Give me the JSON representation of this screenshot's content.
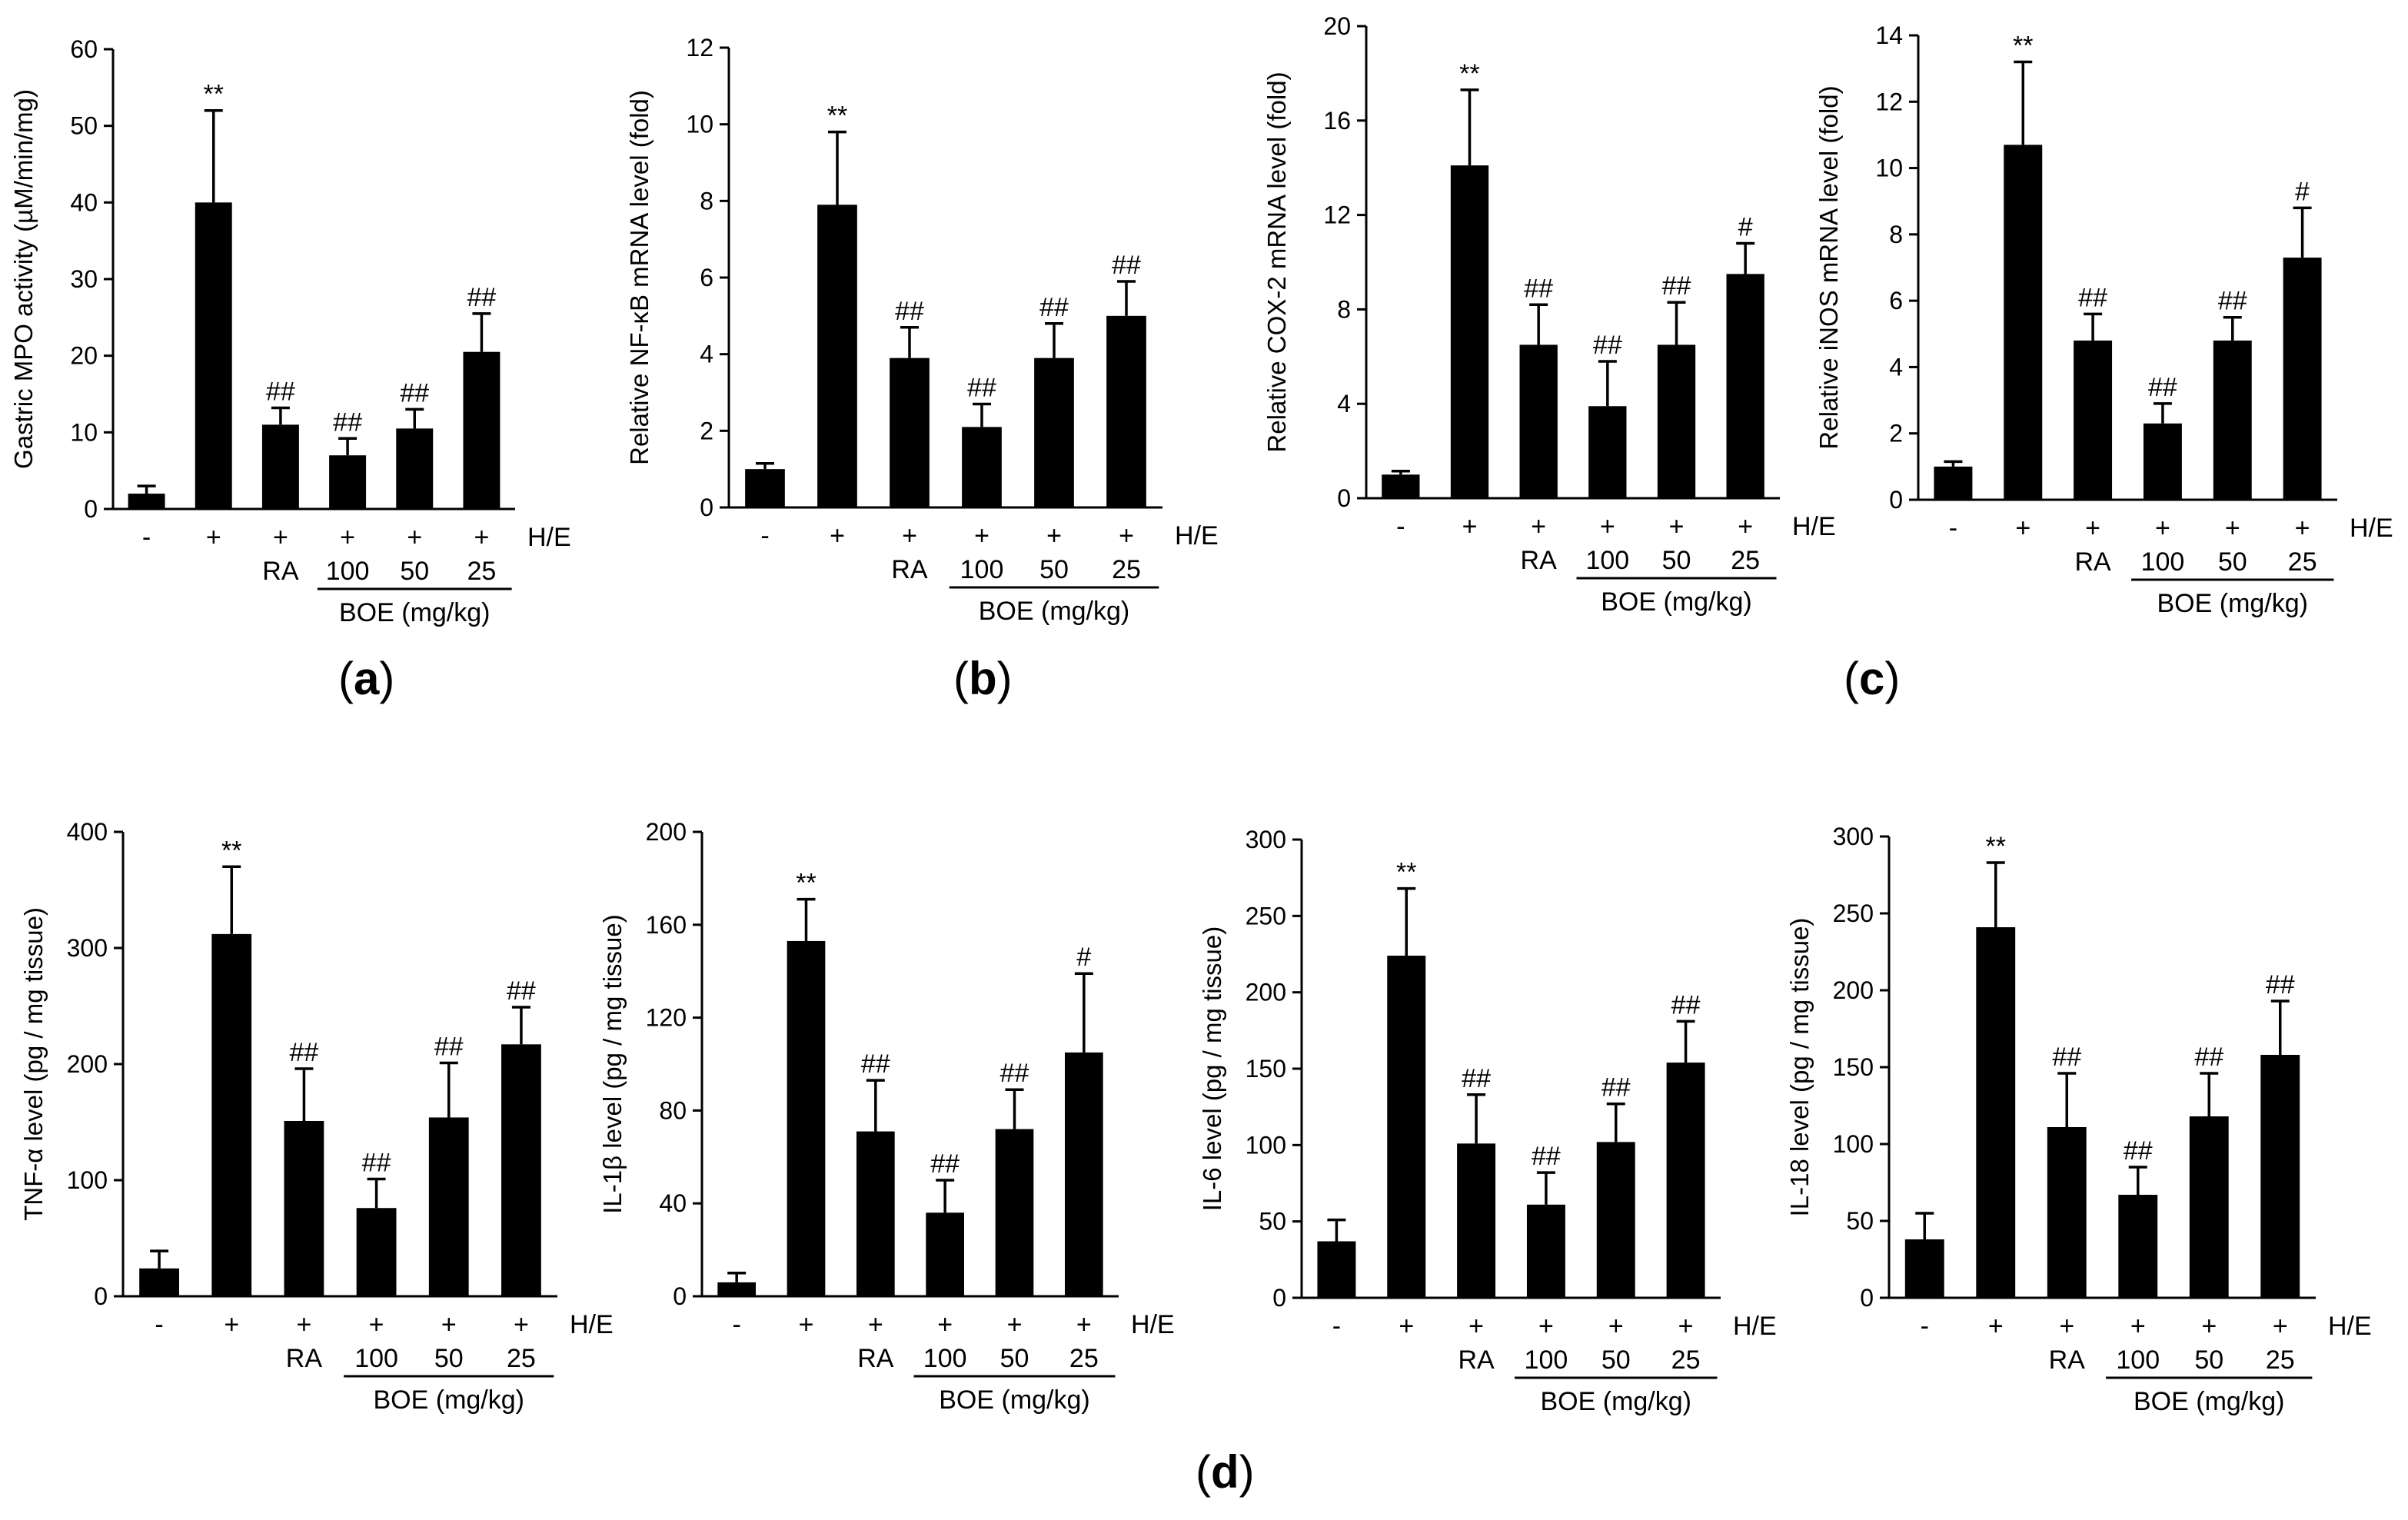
{
  "figure_colors": {
    "bar": "#000000",
    "axis": "#000000",
    "background": "#ffffff"
  },
  "group_row": {
    "treatment_marks": [
      "-",
      "+",
      "+",
      "+",
      "+",
      "+"
    ],
    "treatment_label": "H/E",
    "group_names": [
      "RA",
      "100",
      "50",
      "25"
    ],
    "boe_label": "BOE (mg/kg)"
  },
  "panel_labels": {
    "a": "a",
    "b": "b",
    "c": "c",
    "d": "d"
  },
  "chart_data": [
    {
      "id": "mpo",
      "type": "bar",
      "panel": "a",
      "ylabel": "Gastric MPO activity (µM/min/mg)",
      "ylim": [
        0,
        60
      ],
      "ticks": [
        "0",
        "10",
        "20",
        "30",
        "40",
        "50",
        "60"
      ],
      "values": [
        2,
        40,
        11,
        7,
        10.5,
        20.5
      ],
      "errors": [
        1,
        12,
        2.2,
        2.2,
        2.5,
        5
      ],
      "annotations": [
        "",
        "**",
        "##",
        "##",
        "##",
        "##"
      ]
    },
    {
      "id": "nfkb",
      "type": "bar",
      "panel": "b",
      "ylabel": "Relative NF-κB mRNA level (fold)",
      "ylim": [
        0,
        12
      ],
      "ticks": [
        "0",
        "2",
        "4",
        "6",
        "8",
        "10",
        "12"
      ],
      "values": [
        1,
        7.9,
        3.9,
        2.1,
        3.9,
        5
      ],
      "errors": [
        0.15,
        1.9,
        0.8,
        0.6,
        0.9,
        0.9
      ],
      "annotations": [
        "",
        "**",
        "##",
        "##",
        "##",
        "##"
      ]
    },
    {
      "id": "cox2",
      "type": "bar",
      "panel": "c",
      "ylabel": "Relative COX-2 mRNA level (fold)",
      "ylim": [
        0,
        20
      ],
      "ticks": [
        "0",
        "4",
        "8",
        "12",
        "16",
        "20"
      ],
      "values": [
        1,
        14.1,
        6.5,
        3.9,
        6.5,
        9.5
      ],
      "errors": [
        0.15,
        3.2,
        1.7,
        1.9,
        1.8,
        1.3
      ],
      "annotations": [
        "",
        "**",
        "##",
        "##",
        "##",
        "#"
      ]
    },
    {
      "id": "inos",
      "type": "bar",
      "panel": "c",
      "ylabel": "Relative iNOS mRNA level (fold)",
      "ylim": [
        0,
        14
      ],
      "ticks": [
        "0",
        "2",
        "4",
        "6",
        "8",
        "10",
        "12",
        "14"
      ],
      "values": [
        1,
        10.7,
        4.8,
        2.3,
        4.8,
        7.3
      ],
      "errors": [
        0.15,
        2.5,
        0.8,
        0.6,
        0.7,
        1.5
      ],
      "annotations": [
        "",
        "**",
        "##",
        "##",
        "##",
        "#"
      ]
    },
    {
      "id": "tnfa",
      "type": "bar",
      "panel": "d",
      "ylabel": "TNF-α level (pg / mg tissue)",
      "ylim": [
        0,
        400
      ],
      "ticks": [
        "0",
        "100",
        "200",
        "300",
        "400"
      ],
      "values": [
        24,
        312,
        151,
        76,
        154,
        217
      ],
      "errors": [
        15,
        58,
        45,
        25,
        47,
        32
      ],
      "annotations": [
        "",
        "**",
        "##",
        "##",
        "##",
        "##"
      ]
    },
    {
      "id": "il1b",
      "type": "bar",
      "panel": "d",
      "ylabel": "IL-1β level (pg / mg tissue)",
      "ylim": [
        0,
        200
      ],
      "ticks": [
        "0",
        "40",
        "80",
        "120",
        "160",
        "200"
      ],
      "values": [
        6,
        153,
        71,
        36,
        72,
        105
      ],
      "errors": [
        4,
        18,
        22,
        14,
        17,
        34
      ],
      "annotations": [
        "",
        "**",
        "##",
        "##",
        "##",
        "#"
      ]
    },
    {
      "id": "il6",
      "type": "bar",
      "panel": "d",
      "ylabel": "IL-6 level (pg / mg tissue)",
      "ylim": [
        0,
        300
      ],
      "ticks": [
        "0",
        "50",
        "100",
        "150",
        "200",
        "250",
        "300"
      ],
      "values": [
        37,
        224,
        101,
        61,
        102,
        154
      ],
      "errors": [
        14,
        44,
        32,
        21,
        25,
        27
      ],
      "annotations": [
        "",
        "**",
        "##",
        "##",
        "##",
        "##"
      ]
    },
    {
      "id": "il18",
      "type": "bar",
      "panel": "d",
      "ylabel": "IL-18 level (pg / mg tissue)",
      "ylim": [
        0,
        300
      ],
      "ticks": [
        "0",
        "50",
        "100",
        "150",
        "200",
        "250",
        "300"
      ],
      "values": [
        38,
        241,
        111,
        67,
        118,
        158
      ],
      "errors": [
        17,
        42,
        35,
        18,
        28,
        35
      ],
      "annotations": [
        "",
        "**",
        "##",
        "##",
        "##",
        "##"
      ]
    }
  ]
}
